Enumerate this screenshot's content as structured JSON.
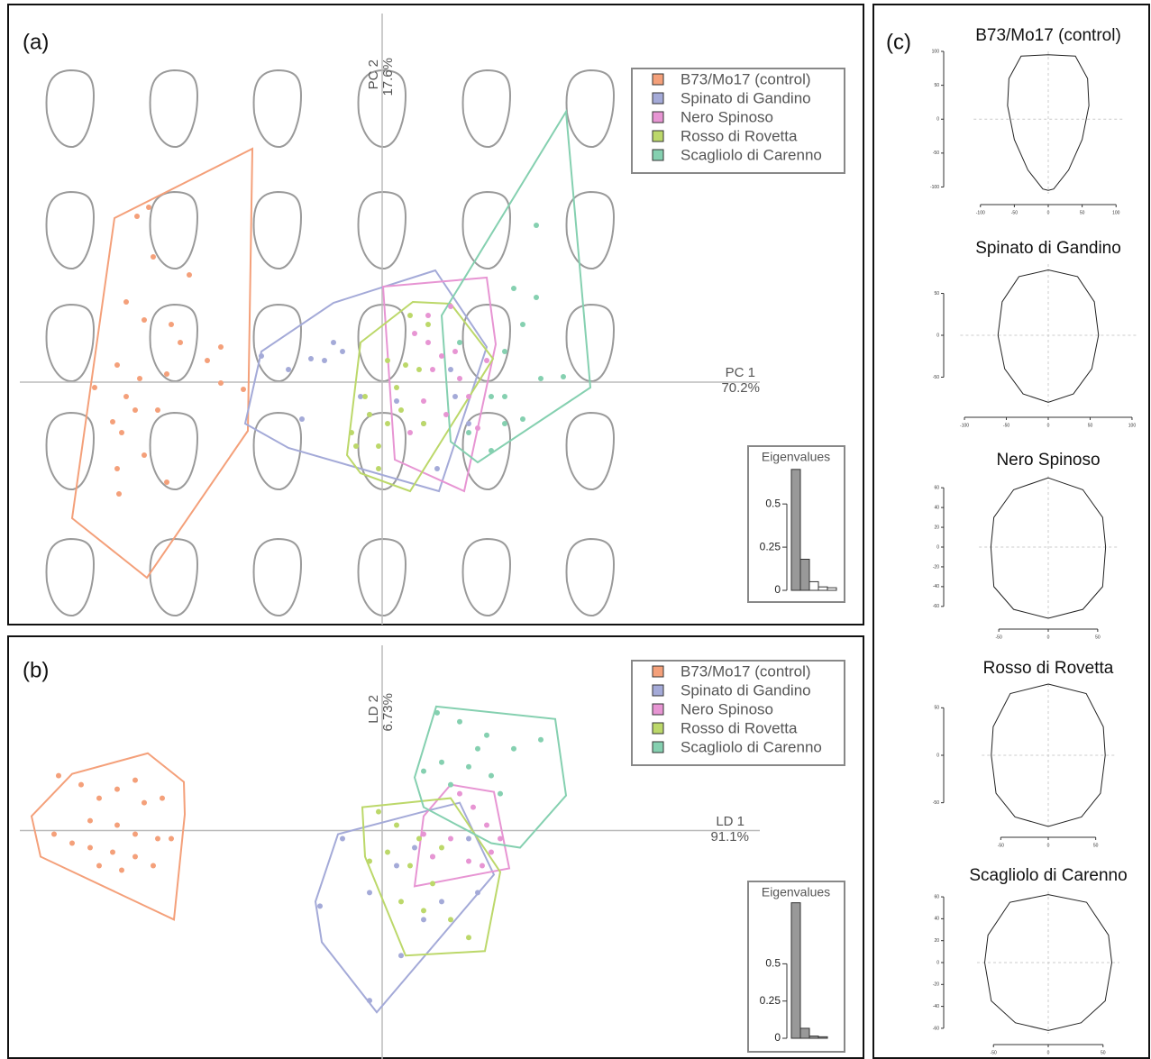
{
  "chart_data": [
    {
      "type": "scatter",
      "panel": "(a)",
      "x_axis_label": "PC 1",
      "x_axis_variance": "70.2%",
      "y_axis_label": "PC 2",
      "y_axis_variance": "17.6%",
      "xlim": [
        -4.14,
        5.34
      ],
      "ylim": [
        -2.69,
        4.19
      ],
      "series": [
        {
          "name": "B73/Mo17 (control)",
          "color": "#f4a07a",
          "x": [
            -2.59,
            -2.72,
            -2.54,
            -2.14,
            -2.84,
            -2.64,
            -2.34,
            -2.24,
            -1.94,
            -1.79,
            -2.94,
            -2.69,
            -2.39,
            -3.19,
            -2.84,
            -1.79,
            -1.54,
            -2.99,
            -2.74,
            -2.89,
            -2.49,
            -2.94,
            -2.64,
            -2.92,
            -2.39
          ],
          "y": [
            1.94,
            1.84,
            1.39,
            1.19,
            0.89,
            0.69,
            0.64,
            0.44,
            0.24,
            0.39,
            0.19,
            0.04,
            0.09,
            -0.06,
            -0.16,
            -0.01,
            -0.08,
            -0.44,
            -0.31,
            -0.56,
            -0.31,
            -0.96,
            -0.81,
            -1.24,
            -1.11
          ],
          "hull_x": [
            -1.44,
            -2.97,
            -3.44,
            -2.61,
            -1.49
          ],
          "hull_y": [
            2.59,
            1.82,
            -1.51,
            -2.17,
            -0.54
          ]
        },
        {
          "name": "Spinato di Gandino",
          "color": "#a4aad8",
          "x": [
            -1.34,
            -1.04,
            -0.79,
            -0.54,
            -0.89,
            -0.24,
            -0.14,
            0.16,
            -0.44,
            0.46,
            0.76,
            0.96,
            0.81,
            0.61,
            -0.64
          ],
          "y": [
            0.29,
            0.14,
            0.26,
            0.44,
            -0.41,
            -0.16,
            -0.36,
            -0.21,
            0.34,
            -0.46,
            0.14,
            -0.46,
            -0.16,
            -0.96,
            0.24
          ],
          "hull_x": [
            0.59,
            -0.54,
            -1.34,
            -1.52,
            -1.04,
            0.63,
            1.16
          ],
          "hull_y": [
            1.24,
            0.88,
            0.34,
            -0.46,
            -0.73,
            -1.21,
            0.39
          ]
        },
        {
          "name": "Nero Spinoso",
          "color": "#e795d3",
          "x": [
            0.36,
            0.51,
            0.66,
            0.81,
            0.56,
            0.86,
            0.96,
            0.46,
            0.71,
            1.06,
            0.31,
            0.76,
            1.16,
            0.51
          ],
          "y": [
            0.54,
            0.44,
            0.29,
            0.34,
            0.14,
            0.04,
            -0.16,
            -0.21,
            -0.36,
            -0.51,
            -0.56,
            0.84,
            0.24,
            0.74
          ],
          "hull_x": [
            0.01,
            1.16,
            1.26,
            0.91,
            0.14
          ],
          "hull_y": [
            1.06,
            1.16,
            0.42,
            -1.21,
            -0.86
          ]
        },
        {
          "name": "Rosso di Rovetta",
          "color": "#bcd86a",
          "x": [
            0.06,
            0.26,
            0.41,
            0.16,
            -0.19,
            -0.14,
            0.06,
            0.21,
            -0.34,
            -0.04,
            0.46,
            -0.29,
            0.31,
            0.51,
            -0.04
          ],
          "y": [
            0.24,
            0.19,
            0.14,
            -0.06,
            -0.16,
            -0.36,
            -0.46,
            -0.31,
            -0.56,
            -0.71,
            -0.46,
            -0.71,
            0.74,
            0.64,
            -0.96
          ],
          "hull_x": [
            0.34,
            0.76,
            1.23,
            0.31,
            -0.24,
            -0.39,
            -0.24
          ],
          "hull_y": [
            0.89,
            0.87,
            0.26,
            -1.21,
            -1.01,
            -0.81,
            0.44
          ]
        },
        {
          "name": "Scagliolo di Carenno",
          "color": "#85d0b0",
          "x": [
            1.71,
            1.46,
            1.71,
            1.56,
            1.36,
            1.76,
            2.01,
            1.21,
            1.36,
            1.56,
            1.21,
            0.96,
            1.36,
            0.86
          ],
          "y": [
            1.74,
            1.04,
            0.94,
            0.64,
            0.34,
            0.04,
            0.06,
            -0.16,
            -0.46,
            -0.41,
            -0.76,
            -0.56,
            -0.16,
            0.44
          ],
          "hull_x": [
            2.04,
            2.31,
            1.06,
            0.76,
            0.66
          ],
          "hull_y": [
            3.0,
            -0.06,
            -0.89,
            -0.66,
            0.74
          ]
        }
      ],
      "inset": {
        "type": "bar",
        "title": "Eigenvalues",
        "values": [
          0.7,
          0.18,
          0.05,
          0.02,
          0.015
        ],
        "colors": [
          "#999999",
          "#999999",
          "#ffffff",
          "#ffffff",
          "#ffffff"
        ],
        "ylim": [
          0,
          0.72
        ],
        "yticks": [
          0,
          0.25,
          0.5
        ]
      }
    },
    {
      "type": "scatter",
      "panel": "(b)",
      "x_axis_label": "LD 1",
      "x_axis_variance": "91.1%",
      "y_axis_label": "LD 2",
      "y_axis_variance": "6.73%",
      "xlim": [
        -4.14,
        5.34
      ],
      "ylim": [
        -2.54,
        2.16
      ],
      "series": [
        {
          "name": "B73/Mo17 (control)",
          "color": "#f4a07a",
          "x": [
            -3.59,
            -3.34,
            -3.14,
            -2.94,
            -2.74,
            -2.64,
            -2.44,
            -3.24,
            -2.94,
            -2.74,
            -2.49,
            -3.64,
            -3.44,
            -3.24,
            -2.99,
            -2.74,
            -3.14,
            -2.89,
            -2.54,
            -2.34
          ],
          "y": [
            0.61,
            0.51,
            0.36,
            0.46,
            0.56,
            0.31,
            0.36,
            0.11,
            0.06,
            -0.04,
            -0.09,
            -0.04,
            -0.14,
            -0.19,
            -0.24,
            -0.29,
            -0.39,
            -0.44,
            -0.39,
            -0.09
          ],
          "hull_x": [
            -2.6,
            -2.2,
            -2.19,
            -2.31,
            -3.79,
            -3.89,
            -3.44
          ],
          "hull_y": [
            0.86,
            0.54,
            0.18,
            -0.99,
            -0.29,
            0.16,
            0.63
          ]
        },
        {
          "name": "Spinato di Gandino",
          "color": "#a4aad8",
          "x": [
            -0.44,
            -0.69,
            -0.14,
            0.21,
            0.46,
            0.66,
            0.16,
            0.56,
            1.06,
            0.96,
            0.36,
            -0.14
          ],
          "y": [
            -0.09,
            -0.84,
            -1.89,
            -1.39,
            -0.99,
            -0.79,
            -0.39,
            -0.29,
            -0.69,
            -0.09,
            -0.19,
            -0.69
          ],
          "hull_x": [
            -0.49,
            -0.74,
            -0.67,
            -0.06,
            1.24,
            0.86,
            0.46
          ],
          "hull_y": [
            -0.04,
            -0.79,
            -1.24,
            -2.02,
            -0.49,
            0.31,
            0.21
          ]
        },
        {
          "name": "Nero Spinoso",
          "color": "#e795d3",
          "x": [
            0.86,
            1.01,
            1.16,
            1.31,
            0.76,
            0.56,
            0.96,
            1.21,
            0.46,
            1.11
          ],
          "y": [
            0.41,
            0.26,
            0.06,
            -0.09,
            -0.09,
            -0.29,
            -0.34,
            -0.24,
            -0.04,
            -0.39
          ],
          "hull_x": [
            0.76,
            1.24,
            1.41,
            0.36,
            0.46
          ],
          "hull_y": [
            0.51,
            0.43,
            -0.42,
            -0.62,
            0.16
          ]
        },
        {
          "name": "Rosso di Rovetta",
          "color": "#bcd86a",
          "x": [
            -0.04,
            0.16,
            0.41,
            0.66,
            0.06,
            0.31,
            -0.14,
            0.56,
            0.21,
            0.76,
            0.96,
            0.46
          ],
          "y": [
            0.21,
            0.06,
            -0.09,
            -0.19,
            -0.24,
            -0.39,
            -0.34,
            -0.59,
            -0.79,
            -0.99,
            -1.19,
            -0.89
          ],
          "hull_x": [
            -0.22,
            0.76,
            1.31,
            1.14,
            0.26,
            -0.19
          ],
          "hull_y": [
            0.26,
            0.36,
            -0.46,
            -1.34,
            -1.39,
            -0.29
          ]
        },
        {
          "name": "Scagliolo di Carenno",
          "color": "#85d0b0",
          "x": [
            0.61,
            0.86,
            1.16,
            1.46,
            0.66,
            0.96,
            1.21,
            0.76,
            0.46,
            1.76,
            1.06,
            1.31
          ],
          "y": [
            1.31,
            1.21,
            1.06,
            0.91,
            0.76,
            0.71,
            0.61,
            0.51,
            0.66,
            1.01,
            0.91,
            0.41
          ],
          "hull_x": [
            0.6,
            1.92,
            2.04,
            1.53,
            1.21,
            0.46,
            0.36
          ],
          "hull_y": [
            1.38,
            1.24,
            0.39,
            -0.19,
            -0.14,
            0.26,
            0.59
          ]
        }
      ],
      "inset": {
        "type": "bar",
        "title": "Eigenvalues",
        "values": [
          0.91,
          0.067,
          0.015,
          0.01
        ],
        "colors": [
          "#999999",
          "#999999",
          "#999999",
          "#999999"
        ],
        "ylim": [
          0,
          0.92
        ],
        "yticks": [
          0,
          0.25,
          0.5
        ]
      }
    },
    {
      "type": "outline",
      "panel": "(c)",
      "title": "B73/Mo17 (control)",
      "x": [
        0,
        40,
        58,
        60,
        50,
        30,
        8,
        0,
        -8,
        -30,
        -50,
        -60,
        -58,
        -40
      ],
      "y": [
        95,
        93,
        60,
        20,
        -30,
        -75,
        -103,
        -105,
        -103,
        -75,
        -30,
        20,
        60,
        93
      ],
      "xlim": [
        -110,
        110
      ],
      "ylim": [
        -110,
        100
      ],
      "xticks": [
        -100,
        -50,
        0,
        50,
        100
      ],
      "yticks": [
        -100,
        -50,
        0,
        50,
        100
      ]
    },
    {
      "type": "outline",
      "title": "Spinato di Gandino",
      "x": [
        0,
        35,
        55,
        60,
        52,
        30,
        0,
        -30,
        -52,
        -60,
        -55,
        -35
      ],
      "y": [
        78,
        70,
        40,
        0,
        -40,
        -70,
        -80,
        -70,
        -40,
        0,
        40,
        70
      ],
      "xlim": [
        -105,
        105
      ],
      "ylim": [
        -85,
        85
      ],
      "xticks": [
        -100,
        -50,
        0,
        50,
        100
      ],
      "yticks": [
        -50,
        0,
        50
      ]
    },
    {
      "type": "outline",
      "title": "Nero Spinoso",
      "x": [
        0,
        35,
        55,
        58,
        55,
        35,
        0,
        -35,
        -55,
        -58,
        -55,
        -35
      ],
      "y": [
        70,
        58,
        30,
        0,
        -40,
        -63,
        -72,
        -63,
        -40,
        0,
        30,
        58
      ],
      "xlim": [
        -70,
        70
      ],
      "ylim": [
        -72,
        72
      ],
      "xticks": [
        -50,
        0,
        50
      ],
      "yticks": [
        -60,
        -40,
        -20,
        0,
        20,
        40,
        60
      ]
    },
    {
      "type": "outline",
      "title": "Rosso di Rovetta",
      "x": [
        0,
        40,
        58,
        60,
        55,
        35,
        0,
        -35,
        -55,
        -60,
        -58,
        -40
      ],
      "y": [
        75,
        65,
        30,
        0,
        -40,
        -65,
        -75,
        -65,
        -40,
        0,
        30,
        65
      ],
      "xlim": [
        -70,
        70
      ],
      "ylim": [
        -75,
        75
      ],
      "xticks": [
        -50,
        0,
        50
      ],
      "yticks": [
        -50,
        0,
        50
      ]
    },
    {
      "type": "outline",
      "title": "Scagliolo di Carenno",
      "x": [
        0,
        35,
        55,
        58,
        52,
        30,
        0,
        -30,
        -52,
        -58,
        -55,
        -35
      ],
      "y": [
        62,
        55,
        25,
        0,
        -35,
        -55,
        -62,
        -55,
        -35,
        0,
        25,
        55
      ],
      "xlim": [
        -65,
        65
      ],
      "ylim": [
        -65,
        65
      ],
      "xticks": [
        -50,
        0,
        50
      ],
      "yticks": [
        -60,
        -40,
        -20,
        0,
        20,
        40,
        60
      ]
    }
  ]
}
